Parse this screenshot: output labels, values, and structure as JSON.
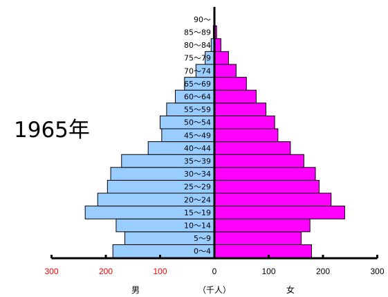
{
  "chart_data": {
    "type": "bar",
    "subtype": "population-pyramid",
    "title": "1965年",
    "categories": [
      "0〜4",
      "5〜9",
      "10〜14",
      "15〜19",
      "20〜24",
      "25〜29",
      "30〜34",
      "35〜39",
      "40〜44",
      "45〜49",
      "50〜54",
      "55〜59",
      "60〜64",
      "65〜69",
      "70〜74",
      "75〜79",
      "80〜84",
      "85〜89",
      "90〜"
    ],
    "series": [
      {
        "name": "男",
        "side": "left",
        "color": "#99ccff",
        "values": [
          187,
          165,
          181,
          238,
          215,
          197,
          191,
          171,
          122,
          97,
          100,
          88,
          72,
          55,
          34,
          17,
          6,
          2,
          0
        ]
      },
      {
        "name": "女",
        "side": "right",
        "color": "#ff00ff",
        "values": [
          179,
          160,
          176,
          240,
          215,
          193,
          186,
          165,
          140,
          117,
          111,
          95,
          77,
          59,
          40,
          26,
          12,
          4,
          1
        ]
      }
    ],
    "xlim": [
      -300,
      300
    ],
    "xticks": [
      -300,
      -200,
      -100,
      0,
      100,
      200,
      300
    ],
    "xtick_labels": [
      "300",
      "200",
      "100",
      "0",
      "100",
      "200",
      "300"
    ],
    "xtick_colors": [
      "#ff0000",
      "#ff0000",
      "#ff0000",
      "#000000",
      "#000000",
      "#000000",
      "#000000"
    ],
    "left_label": "男",
    "unit_label": "（千人）",
    "right_label": "女",
    "grid": false,
    "legend": "none"
  }
}
